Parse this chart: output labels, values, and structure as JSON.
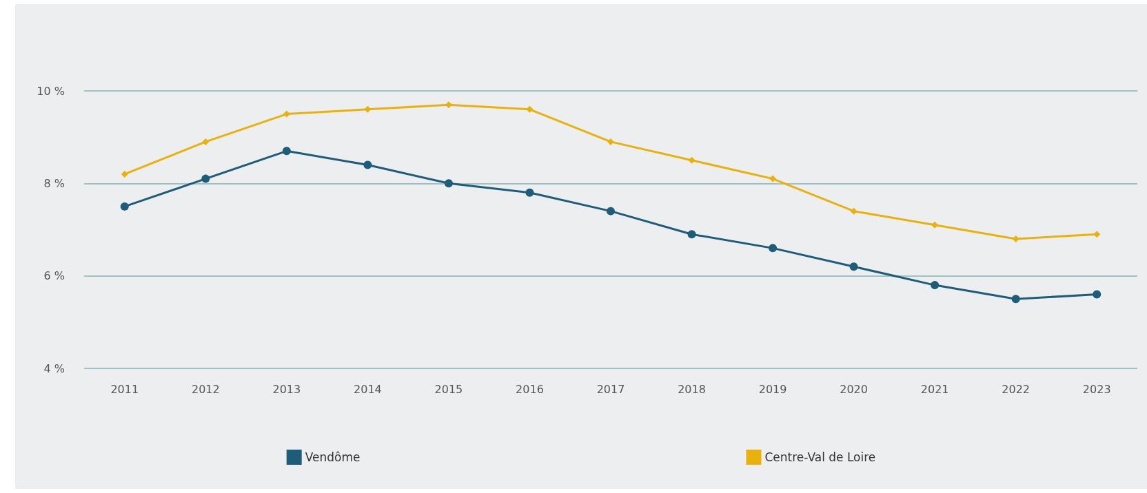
{
  "chart_data": {
    "type": "line",
    "categories": [
      "2011",
      "2012",
      "2013",
      "2014",
      "2015",
      "2016",
      "2017",
      "2018",
      "2019",
      "2020",
      "2021",
      "2022",
      "2023"
    ],
    "series": [
      {
        "name": "Vendôme",
        "color": "#1f5c7a",
        "marker": "circle",
        "values": [
          7.5,
          8.1,
          8.7,
          8.4,
          8.0,
          7.8,
          7.4,
          6.9,
          6.6,
          6.2,
          5.8,
          5.5,
          5.6
        ]
      },
      {
        "name": "Centre-Val de Loire",
        "color": "#e8b10e",
        "marker": "diamond",
        "values": [
          8.2,
          8.9,
          9.5,
          9.6,
          9.7,
          9.6,
          8.9,
          8.5,
          8.1,
          7.4,
          7.1,
          6.8,
          6.9
        ]
      }
    ],
    "ylim": [
      4,
      10
    ],
    "yticks": [
      {
        "value": 4,
        "label": "4 %"
      },
      {
        "value": 6,
        "label": "6 %"
      },
      {
        "value": 8,
        "label": "8 %"
      },
      {
        "value": 10,
        "label": "10 %"
      }
    ],
    "grid": "y",
    "legend": "bottom",
    "line_style": "solid"
  }
}
